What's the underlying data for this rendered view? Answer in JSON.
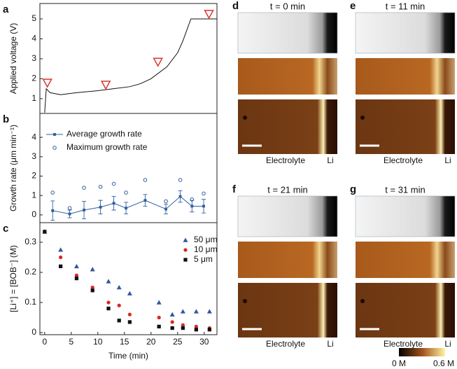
{
  "chart_data": [
    {
      "type": "line",
      "panel": "a",
      "ylabel": "Applied voltage (V)",
      "xlim": [
        -0.9,
        32.4
      ],
      "ylim": [
        0.26,
        5.77
      ],
      "yticks": [
        1,
        2,
        3,
        4,
        5
      ],
      "series": [
        {
          "mode": "line",
          "color": "#111111",
          "x": [
            0,
            0.3,
            1,
            3,
            6,
            10,
            13,
            16,
            18,
            20,
            23,
            25,
            26,
            27.5,
            32.4
          ],
          "values": [
            0.3,
            1.5,
            1.3,
            1.2,
            1.3,
            1.4,
            1.5,
            1.6,
            1.75,
            2.0,
            2.6,
            3.3,
            3.9,
            5.0,
            5.0
          ]
        },
        {
          "mode": "markers",
          "marker": "triangle-down",
          "color": "#d9362e",
          "x": [
            0.5,
            11.5,
            21.3,
            30.9
          ],
          "values": [
            1.8,
            1.7,
            2.85,
            5.25
          ]
        }
      ]
    },
    {
      "type": "line",
      "panel": "b",
      "ylabel": "Growth rate (μm min⁻¹)",
      "xlim": [
        -0.9,
        32.4
      ],
      "ylim": [
        -0.4,
        5.23
      ],
      "yticks": [
        0,
        1,
        2,
        3,
        4
      ],
      "legend": "upper left",
      "x": [
        1.5,
        4.7,
        7.4,
        10.5,
        13,
        15.3,
        18.9,
        22.8,
        25.5,
        27.7,
        29.9
      ],
      "series": [
        {
          "name": "Average growth rate",
          "mode": "line+markers",
          "marker": "square",
          "color": "#2f5f9f",
          "values": [
            0.22,
            0.05,
            0.25,
            0.4,
            0.6,
            0.35,
            0.75,
            0.3,
            0.95,
            0.45,
            0.45
          ],
          "errors": [
            0.5,
            0.2,
            0.45,
            0.35,
            0.35,
            0.3,
            0.3,
            0.25,
            0.3,
            0.3,
            0.35
          ]
        },
        {
          "name": "Maximum growth rate",
          "mode": "markers",
          "marker": "open-circle",
          "color": "#2f5f9f",
          "values": [
            1.15,
            0.35,
            1.4,
            1.45,
            1.6,
            1.15,
            1.8,
            0.7,
            1.8,
            0.8,
            1.1
          ]
        }
      ]
    },
    {
      "type": "scatter",
      "panel": "c",
      "ylabel": "[Li⁺] = [BOB⁻] (M)",
      "xlabel": "Time (min)",
      "xlim": [
        -0.9,
        32.4
      ],
      "ylim": [
        -0.007,
        0.365
      ],
      "yticks": [
        0,
        0.1,
        0.2,
        0.3
      ],
      "xticks": [
        0,
        5,
        10,
        15,
        20,
        25,
        30
      ],
      "legend": "upper right",
      "x": [
        0,
        3,
        6,
        9,
        12,
        14,
        16,
        21.5,
        24,
        26,
        28.5,
        31
      ],
      "series": [
        {
          "name": "50 μm",
          "marker": "triangle-up",
          "color": "#2f57a3",
          "values": [
            0.335,
            0.275,
            0.22,
            0.21,
            0.17,
            0.15,
            0.13,
            0.1,
            0.06,
            0.07,
            0.07,
            0.07
          ]
        },
        {
          "name": "10 μm",
          "marker": "circle",
          "color": "#d62a24",
          "values": [
            0.335,
            0.25,
            0.19,
            0.15,
            0.1,
            0.09,
            0.06,
            0.05,
            0.035,
            0.025,
            0.02,
            0.015
          ]
        },
        {
          "name": "5 μm",
          "marker": "square",
          "color": "#111111",
          "values": [
            0.335,
            0.22,
            0.18,
            0.14,
            0.08,
            0.04,
            0.035,
            0.02,
            0.015,
            0.015,
            0.01,
            0.01
          ]
        }
      ]
    }
  ],
  "images": {
    "panels": [
      {
        "label": "d",
        "title": "t = 0 min",
        "left_label": "Electrolyte",
        "right_label": "Li"
      },
      {
        "label": "e",
        "title": "t = 11 min",
        "left_label": "Electrolyte",
        "right_label": "Li"
      },
      {
        "label": "f",
        "title": "t = 21 min",
        "left_label": "Electrolyte",
        "right_label": "Li"
      },
      {
        "label": "g",
        "title": "t = 31 min",
        "left_label": "Electrolyte",
        "right_label": "Li"
      }
    ],
    "colorbar": {
      "min_label": "0 M",
      "max_label": "0.6 M"
    }
  }
}
